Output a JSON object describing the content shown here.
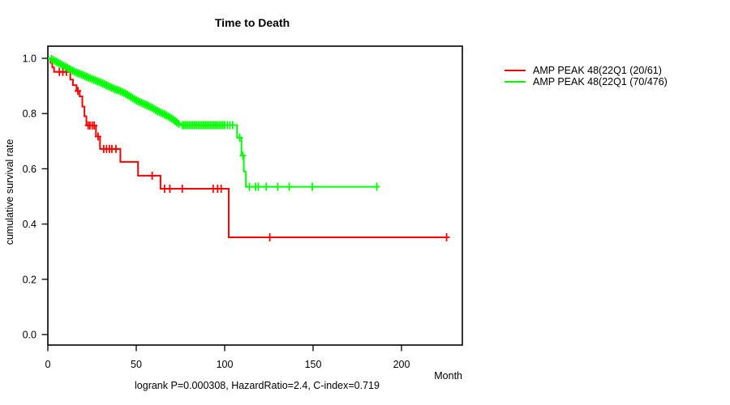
{
  "title": "Time to Death",
  "caption": "logrank P=0.000308, HazardRatio=2.4, C-index=0.719",
  "axes": {
    "x_label": "Month",
    "y_label": "cumulative survival rate"
  },
  "chart_data": {
    "type": "line",
    "subtype": "kaplan_meier_step",
    "title": "Time to Death",
    "xlabel": "Month",
    "ylabel": "cumulative survival rate",
    "annotation": "logrank P=0.000308, HazardRatio=2.4, C-index=0.719",
    "xlim": [
      0,
      234
    ],
    "ylim": [
      -0.04,
      1.04
    ],
    "x_ticks": [
      0,
      50,
      100,
      150,
      200
    ],
    "y_ticks": [
      "0.0",
      "0.2",
      "0.4",
      "0.6",
      "0.8",
      "1.0"
    ],
    "grid": false,
    "legend_position": "right-outside-top",
    "series": [
      {
        "name": "AMP PEAK 48(22Q1 (20/61)",
        "color": "#ff0000",
        "steps": [
          [
            0,
            1.0
          ],
          [
            1.5,
            0.984
          ],
          [
            2.5,
            0.967
          ],
          [
            3.5,
            0.951
          ],
          [
            12.7,
            0.923
          ],
          [
            14.2,
            0.903
          ],
          [
            16.2,
            0.882
          ],
          [
            18,
            0.862
          ],
          [
            19.5,
            0.825
          ],
          [
            20.7,
            0.79
          ],
          [
            21.8,
            0.757
          ],
          [
            27.2,
            0.717
          ],
          [
            29.5,
            0.672
          ],
          [
            41,
            0.625
          ],
          [
            51,
            0.575
          ],
          [
            63.7,
            0.528
          ],
          [
            102.3,
            0.352
          ]
        ],
        "censor_times": [
          6.5,
          8.5,
          10.5,
          17,
          22.8,
          23.8,
          25.1,
          26.2,
          28.4,
          31.6,
          33.2,
          34.8,
          36.2,
          38.5,
          59,
          66,
          69,
          76,
          93.5,
          96,
          98,
          125.5,
          225.5
        ],
        "end_time": 225.5
      },
      {
        "name": "AMP PEAK 48(22Q1 (70/476)",
        "color": "#00ff00",
        "steps": [
          [
            0,
            1.0
          ],
          [
            1.5,
            0.997
          ],
          [
            3,
            0.994
          ],
          [
            4,
            0.99
          ],
          [
            5,
            0.987
          ],
          [
            6,
            0.983
          ],
          [
            7,
            0.98
          ],
          [
            8,
            0.976
          ],
          [
            9,
            0.973
          ],
          [
            10,
            0.969
          ],
          [
            11,
            0.966
          ],
          [
            12,
            0.962
          ],
          [
            13,
            0.959
          ],
          [
            14,
            0.955
          ],
          [
            15,
            0.952
          ],
          [
            16,
            0.949
          ],
          [
            17,
            0.946
          ],
          [
            18,
            0.944
          ],
          [
            19,
            0.941
          ],
          [
            20,
            0.939
          ],
          [
            21,
            0.936
          ],
          [
            22,
            0.933
          ],
          [
            23,
            0.93
          ],
          [
            24,
            0.928
          ],
          [
            25,
            0.925
          ],
          [
            26,
            0.922
          ],
          [
            27,
            0.92
          ],
          [
            28,
            0.917
          ],
          [
            29,
            0.915
          ],
          [
            30,
            0.912
          ],
          [
            31,
            0.909
          ],
          [
            32,
            0.906
          ],
          [
            33,
            0.903
          ],
          [
            34,
            0.9
          ],
          [
            35,
            0.897
          ],
          [
            36,
            0.894
          ],
          [
            37,
            0.891
          ],
          [
            38,
            0.888
          ],
          [
            39,
            0.886
          ],
          [
            40,
            0.884
          ],
          [
            41,
            0.881
          ],
          [
            42,
            0.878
          ],
          [
            43,
            0.875
          ],
          [
            44,
            0.872
          ],
          [
            45,
            0.868
          ],
          [
            46,
            0.864
          ],
          [
            47,
            0.86
          ],
          [
            48,
            0.856
          ],
          [
            49,
            0.852
          ],
          [
            50,
            0.848
          ],
          [
            51,
            0.845
          ],
          [
            52,
            0.842
          ],
          [
            53,
            0.839
          ],
          [
            54,
            0.836
          ],
          [
            55,
            0.833
          ],
          [
            56,
            0.83
          ],
          [
            57,
            0.827
          ],
          [
            58,
            0.824
          ],
          [
            59,
            0.821
          ],
          [
            60,
            0.817
          ],
          [
            61,
            0.813
          ],
          [
            62,
            0.809
          ],
          [
            63,
            0.806
          ],
          [
            64,
            0.803
          ],
          [
            65,
            0.8
          ],
          [
            66,
            0.797
          ],
          [
            67,
            0.794
          ],
          [
            68,
            0.79
          ],
          [
            69,
            0.786
          ],
          [
            70,
            0.782
          ],
          [
            71,
            0.778
          ],
          [
            72,
            0.773
          ],
          [
            73,
            0.768
          ],
          [
            74,
            0.763
          ],
          [
            75.5,
            0.758
          ],
          [
            107,
            0.713
          ],
          [
            109.5,
            0.648
          ],
          [
            110.8,
            0.59
          ],
          [
            112,
            0.535
          ]
        ],
        "censor_times": [
          2,
          3,
          4,
          5,
          6,
          7,
          8,
          9,
          10,
          11,
          12,
          13,
          14,
          15,
          16,
          17,
          18,
          19,
          20,
          21,
          22,
          23,
          24,
          25,
          26,
          27,
          28,
          29,
          30,
          31,
          32,
          33,
          34,
          35,
          36,
          37,
          38,
          39,
          40,
          41,
          42,
          43,
          44,
          45,
          46,
          47,
          48,
          49,
          50,
          51,
          52,
          53,
          54,
          55,
          56,
          57,
          58,
          59,
          60,
          61,
          62,
          63,
          64,
          65,
          66,
          67,
          68,
          69,
          70,
          71,
          72,
          73,
          74,
          76,
          77,
          78,
          79,
          80,
          81,
          82,
          83,
          84,
          85,
          86,
          87,
          88,
          89,
          90,
          91,
          92,
          93,
          94,
          95,
          96,
          97,
          98,
          99,
          100,
          101.5,
          103,
          104.5,
          108.5,
          110.3,
          114,
          117.5,
          119,
          123.5,
          130,
          136.5,
          149.5,
          186
        ],
        "end_time": 186
      }
    ]
  }
}
